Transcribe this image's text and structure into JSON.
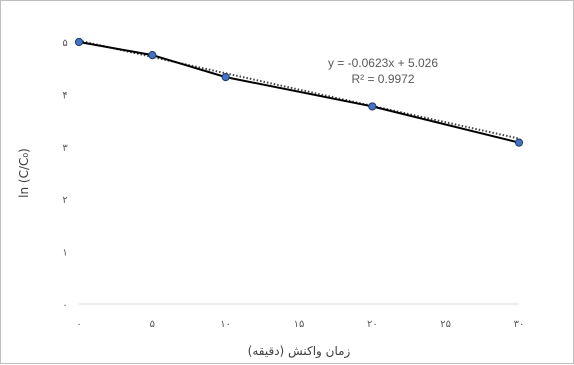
{
  "chart_data": {
    "type": "scatter",
    "title": "",
    "xlabel": "زمان واکنش (دقیقه)",
    "ylabel": "ln (C/C₀)",
    "xlim": [
      0,
      30
    ],
    "ylim": [
      0,
      5
    ],
    "x_ticks": [
      0,
      5,
      10,
      15,
      20,
      25,
      30
    ],
    "y_ticks": [
      0,
      1,
      2,
      3,
      4,
      5
    ],
    "x_tick_labels": [
      "۰",
      "۵",
      "۱۰",
      "۱۵",
      "۲۰",
      "۲۵",
      "۳۰"
    ],
    "y_tick_labels": [
      "۰",
      "۱",
      "۲",
      "۳",
      "۴",
      "۵"
    ],
    "grid": false,
    "series": [
      {
        "x": [
          0,
          5,
          10,
          20,
          30
        ],
        "y": [
          5.0,
          4.75,
          4.33,
          3.77,
          3.08
        ],
        "marker_color": "#4472c4",
        "line_color": "#000000"
      }
    ],
    "trendline": {
      "type": "linear",
      "slope": -0.0623,
      "intercept": 5.026,
      "style": "dotted",
      "equation_label": "y = -0.0623x + 5.026",
      "r2_label": "R² = 0.9972"
    }
  }
}
